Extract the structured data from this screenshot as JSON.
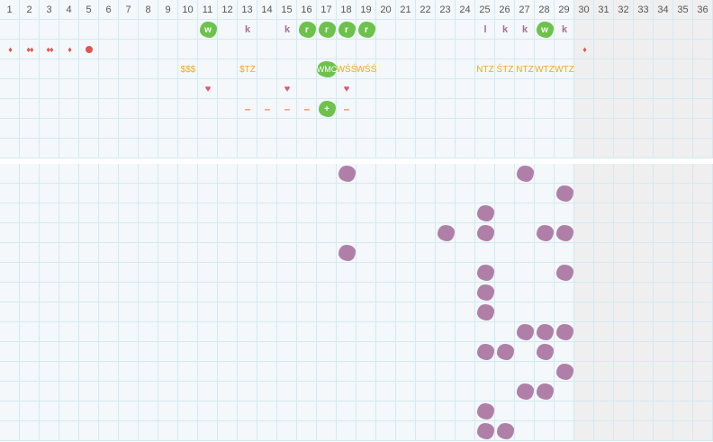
{
  "days": [
    "1",
    "2",
    "3",
    "4",
    "5",
    "6",
    "7",
    "8",
    "9",
    "10",
    "11",
    "12",
    "13",
    "14",
    "15",
    "16",
    "17",
    "18",
    "19",
    "20",
    "21",
    "22",
    "23",
    "24",
    "25",
    "26",
    "27",
    "28",
    "29",
    "30",
    "31",
    "32",
    "33",
    "34",
    "35",
    "36"
  ],
  "shaded_from_day": 30,
  "colors": {
    "grid": "#d3e9f3",
    "cell": "#f4f8fa",
    "shaded": "#efefef",
    "green": "#6cc24a",
    "purple": "#b07fa8",
    "text": "#f5a623",
    "drop": "#e05555",
    "heart": "#e2557a",
    "dash": "#f0845a"
  },
  "top_rows": [
    [
      {
        "day": 11,
        "type": "green",
        "text": "w"
      },
      {
        "day": 13,
        "type": "letter",
        "text": "k"
      },
      {
        "day": 15,
        "type": "letter",
        "text": "k"
      },
      {
        "day": 16,
        "type": "green",
        "text": "r"
      },
      {
        "day": 17,
        "type": "green",
        "text": "r"
      },
      {
        "day": 18,
        "type": "green",
        "text": "r"
      },
      {
        "day": 19,
        "type": "green",
        "text": "r"
      },
      {
        "day": 25,
        "type": "letter",
        "text": "l"
      },
      {
        "day": 26,
        "type": "letter",
        "text": "k"
      },
      {
        "day": 27,
        "type": "letter",
        "text": "k"
      },
      {
        "day": 28,
        "type": "green",
        "text": "w"
      },
      {
        "day": 29,
        "type": "letter",
        "text": "k"
      }
    ],
    [
      {
        "day": 1,
        "type": "drop",
        "text": "♦"
      },
      {
        "day": 2,
        "type": "drop",
        "text": "♦♦"
      },
      {
        "day": 3,
        "type": "drop",
        "text": "♦♦"
      },
      {
        "day": 4,
        "type": "drop",
        "text": "♦"
      },
      {
        "day": 5,
        "type": "dot",
        "text": ""
      },
      {
        "day": 30,
        "type": "drop",
        "text": "♦"
      }
    ],
    [
      {
        "day": 10,
        "type": "txt",
        "text": "$$$"
      },
      {
        "day": 13,
        "type": "txt",
        "text": "$TZ"
      },
      {
        "day": 17,
        "type": "greentxt",
        "text": "WMC"
      },
      {
        "day": 18,
        "type": "txt",
        "text": "WŚŚ"
      },
      {
        "day": 19,
        "type": "txt",
        "text": "WŚŚ"
      },
      {
        "day": 25,
        "type": "txt",
        "text": "NTZ"
      },
      {
        "day": 26,
        "type": "txt",
        "text": "ŚTZ"
      },
      {
        "day": 27,
        "type": "txt",
        "text": "NTZ"
      },
      {
        "day": 28,
        "type": "txt",
        "text": "WTZ"
      },
      {
        "day": 29,
        "type": "txt",
        "text": "WTZ"
      }
    ],
    [
      {
        "day": 11,
        "type": "heart",
        "text": "♥"
      },
      {
        "day": 15,
        "type": "heart",
        "text": "♥"
      },
      {
        "day": 18,
        "type": "heart",
        "text": "♥"
      }
    ],
    [
      {
        "day": 13,
        "type": "dash",
        "text": "–"
      },
      {
        "day": 14,
        "type": "dash",
        "text": "–"
      },
      {
        "day": 15,
        "type": "dash",
        "text": "–"
      },
      {
        "day": 16,
        "type": "dash",
        "text": "–"
      },
      {
        "day": 17,
        "type": "green",
        "text": "+"
      },
      {
        "day": 18,
        "type": "dash",
        "text": "–"
      }
    ],
    [],
    []
  ],
  "bottom_rows": [
    [
      18,
      27
    ],
    [
      29
    ],
    [
      25
    ],
    [
      23,
      25,
      28,
      29
    ],
    [
      18
    ],
    [
      25,
      29
    ],
    [
      25
    ],
    [
      25
    ],
    [
      27,
      28,
      29
    ],
    [
      25,
      26,
      28
    ],
    [
      29
    ],
    [
      27,
      28
    ],
    [
      25
    ],
    [
      25,
      26
    ]
  ]
}
